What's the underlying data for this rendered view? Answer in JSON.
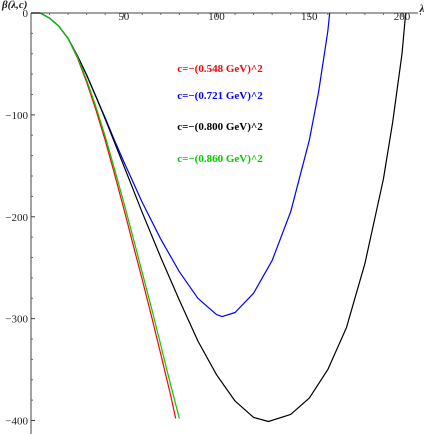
{
  "chart_data": {
    "type": "line",
    "title": "",
    "xlabel": "λ",
    "ylabel": "β(λ,c)",
    "xlim": [
      0,
      210
    ],
    "ylim": [
      -410,
      0
    ],
    "x_ticks": [
      50,
      100,
      150,
      200
    ],
    "y_ticks": [
      0,
      -100,
      -200,
      -300,
      -400
    ],
    "x_tick_labels": [
      "50",
      "100",
      "150",
      "200"
    ],
    "y_tick_labels": [
      "0",
      "−100",
      "−200",
      "−300",
      "−400"
    ],
    "legend_position": "top-center",
    "grid": false,
    "series": [
      {
        "name": "c=−(0.548 GeV)^2",
        "color": "#ff0000",
        "x": [
          0,
          3,
          5,
          10,
          15,
          20,
          25,
          30,
          35,
          40,
          45,
          50,
          55,
          60,
          65,
          70,
          75,
          78
        ],
        "y": [
          0,
          0,
          0,
          -5,
          -13,
          -25,
          -44,
          -68,
          -95,
          -125,
          -158,
          -192,
          -227,
          -262,
          -298,
          -335,
          -373,
          -398
        ]
      },
      {
        "name": "c=−(0.721 GeV)^2",
        "color": "#0000ff",
        "x": [
          0,
          3,
          5,
          10,
          15,
          20,
          25,
          30,
          35,
          40,
          45,
          50,
          60,
          70,
          80,
          90,
          100,
          103,
          110,
          120,
          130,
          140,
          150,
          155,
          160,
          161
        ],
        "y": [
          0,
          0,
          0,
          -5,
          -13,
          -25,
          -42,
          -61,
          -82,
          -103,
          -125,
          -146,
          -186,
          -222,
          -254,
          -280,
          -296,
          -298,
          -294,
          -275,
          -243,
          -195,
          -125,
          -78,
          -18,
          0
        ]
      },
      {
        "name": "c=−(0.800 GeV)^2",
        "color": "#000000",
        "x": [
          0,
          3,
          5,
          10,
          15,
          20,
          25,
          30,
          35,
          40,
          45,
          50,
          60,
          70,
          80,
          90,
          100,
          110,
          120,
          128,
          140,
          150,
          160,
          170,
          180,
          190,
          195,
          200,
          202
        ],
        "y": [
          0,
          0,
          0,
          -5,
          -13,
          -25,
          -42,
          -61,
          -82,
          -104,
          -127,
          -150,
          -196,
          -240,
          -282,
          -322,
          -355,
          -381,
          -397,
          -401,
          -394,
          -378,
          -350,
          -309,
          -246,
          -163,
          -107,
          -40,
          0
        ]
      },
      {
        "name": "c=−(0.860 GeV)^2",
        "color": "#00cc00",
        "x": [
          0,
          3,
          5,
          10,
          15,
          20,
          25,
          30,
          35,
          40,
          45,
          50,
          55,
          60,
          65,
          70,
          75,
          80
        ],
        "y": [
          0,
          0,
          0,
          -5,
          -13,
          -25,
          -43,
          -66,
          -92,
          -121,
          -153,
          -186,
          -220,
          -255,
          -290,
          -326,
          -363,
          -398
        ]
      }
    ]
  }
}
